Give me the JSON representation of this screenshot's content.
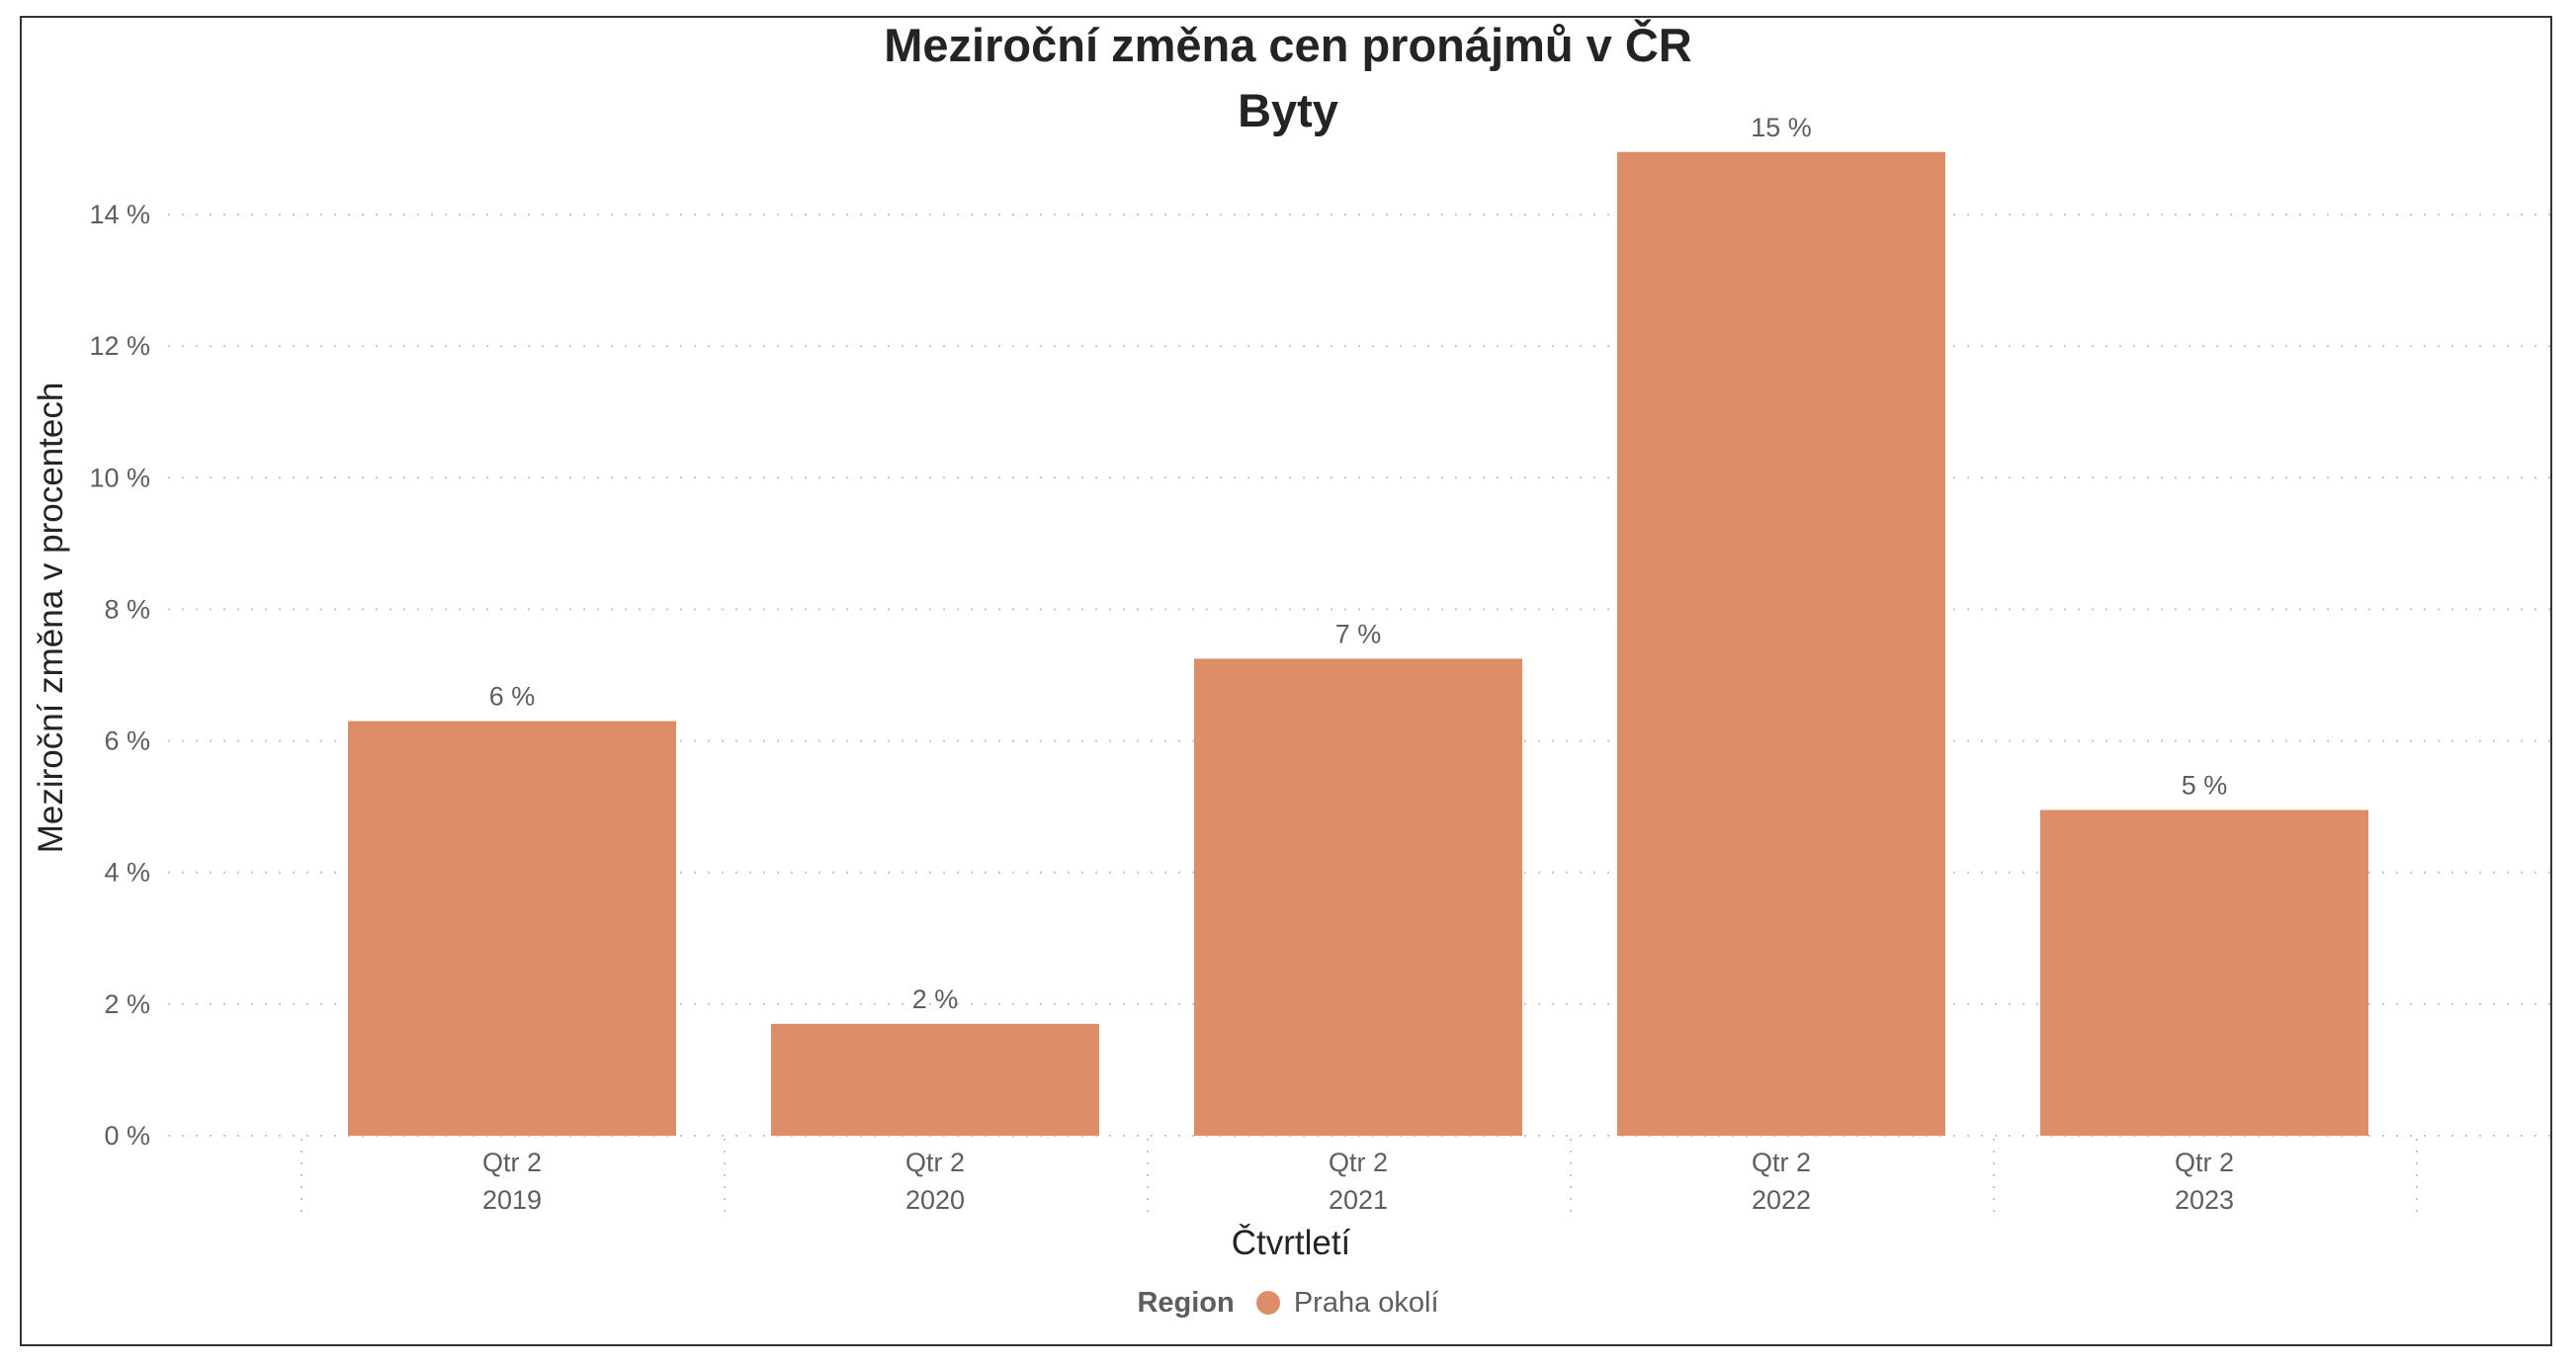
{
  "chart_data": {
    "type": "bar",
    "title": "Meziroční změna cen pronájmů v ČR",
    "subtitle": "Byty",
    "xlabel": "Čtvrtletí",
    "ylabel": "Meziroční změna v procentech",
    "categories": [
      {
        "quarter": "Qtr 2",
        "year": "2019"
      },
      {
        "quarter": "Qtr 2",
        "year": "2020"
      },
      {
        "quarter": "Qtr 2",
        "year": "2021"
      },
      {
        "quarter": "Qtr 2",
        "year": "2022"
      },
      {
        "quarter": "Qtr 2",
        "year": "2023"
      }
    ],
    "series": [
      {
        "name": "Praha okolí",
        "values": [
          6.3,
          1.7,
          7.25,
          14.95,
          4.95
        ],
        "data_labels": [
          "6 %",
          "2 %",
          "7 %",
          "15 %",
          "5 %"
        ]
      }
    ],
    "yticks": [
      0,
      2,
      4,
      6,
      8,
      10,
      12,
      14
    ],
    "ytick_labels": [
      "0 %",
      "2 %",
      "4 %",
      "6 %",
      "8 %",
      "10 %",
      "12 %",
      "14 %"
    ],
    "ylim": [
      0,
      15
    ],
    "grid": true,
    "legend": {
      "title": "Region",
      "position": "bottom-center"
    },
    "bar_color": "#dd8e69"
  }
}
